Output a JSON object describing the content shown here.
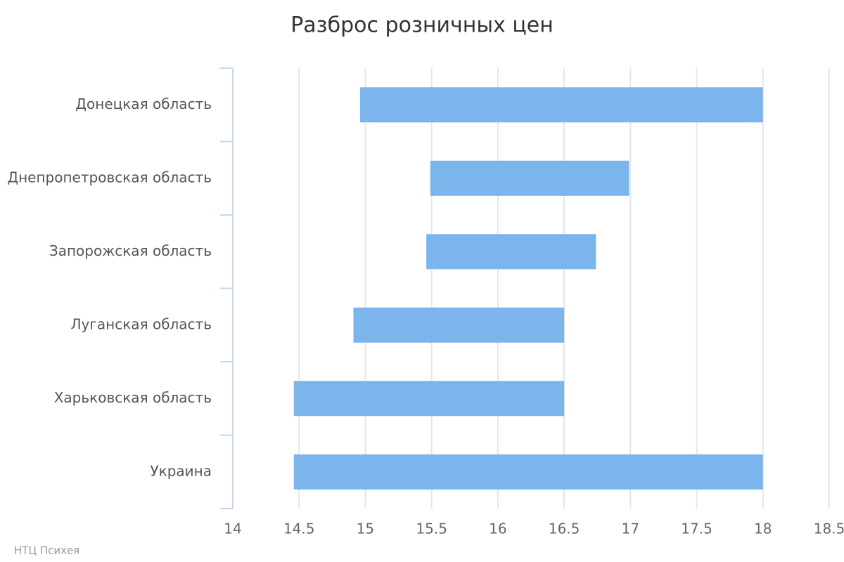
{
  "chart_data": {
    "type": "range-bar",
    "title": "Разброс розничных цен",
    "categories": [
      "Донецкая область",
      "Днепропетровская область",
      "Запорожская область",
      "Луганская область",
      "Харьковская область",
      "Украина"
    ],
    "low": [
      14.96,
      15.49,
      15.46,
      14.91,
      14.46,
      14.46
    ],
    "high": [
      18,
      16.99,
      16.74,
      16.5,
      16.5,
      18
    ],
    "color": "#7cb5ec",
    "xlim": [
      14,
      18.5
    ],
    "xticks": [
      14,
      14.5,
      15,
      15.5,
      16,
      16.5,
      17,
      17.5,
      18,
      18.5
    ],
    "grid": true,
    "credits": "НТЦ Психея"
  }
}
